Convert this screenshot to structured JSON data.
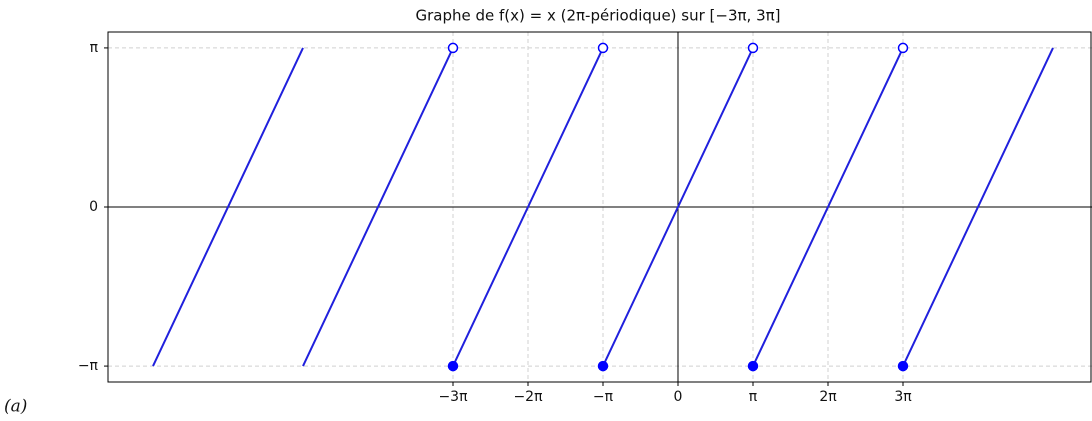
{
  "chart_data": {
    "type": "line",
    "title": "Graphe de f(x) = x (2π-périodique) sur [−3π, 3π]",
    "caption": "(a)",
    "x": [
      -21.99115,
      -15.70796,
      -15.70796,
      -15.70796,
      -9.42478,
      -9.42478,
      -9.42478,
      -3.14159,
      -3.14159,
      -3.14159,
      3.14159,
      3.14159,
      3.14159,
      9.42478,
      9.42478,
      9.42478,
      15.70796
    ],
    "series": [
      {
        "color": "#2020dd",
        "marker": "none",
        "x": [
          -21.99115,
          -15.70796,
          -15.70796,
          -15.70796,
          -9.42478,
          -9.42478,
          -9.42478,
          -3.14159,
          -3.14159,
          -3.14159,
          3.14159,
          3.14159,
          3.14159,
          9.42478,
          9.42478,
          9.42478,
          15.70796
        ],
        "values": [
          -3.14159,
          3.14159,
          null,
          -3.14159,
          3.14159,
          null,
          -3.14159,
          3.14159,
          null,
          -3.14159,
          3.14159,
          null,
          -3.14159,
          3.14159,
          null,
          -3.14159,
          3.14159
        ]
      },
      {
        "color": "#0000ff",
        "marker": "filled",
        "x": [
          -9.42478,
          -3.14159,
          3.14159,
          9.42478
        ],
        "values": [
          -3.14159,
          -3.14159,
          -3.14159,
          -3.14159
        ]
      },
      {
        "color": "#0000ff",
        "marker": "open",
        "x": [
          -9.42478,
          -3.14159,
          3.14159,
          9.42478
        ],
        "values": [
          3.14159,
          3.14159,
          3.14159,
          3.14159
        ]
      }
    ],
    "xlim": [
      -23.876,
      17.342
    ],
    "ylim": [
      -3.456,
      3.456
    ],
    "xticks": [
      {
        "value": -9.42478,
        "label": "−3π"
      },
      {
        "value": -6.28319,
        "label": "−2π"
      },
      {
        "value": -3.14159,
        "label": "−π"
      },
      0,
      {
        "value": 3.14159,
        "label": "π"
      },
      {
        "value": 6.28319,
        "label": "2π"
      },
      {
        "value": 9.42478,
        "label": "3π"
      }
    ],
    "yticks": [
      {
        "value": -3.14159,
        "label": "−π"
      },
      0,
      {
        "value": 3.14159,
        "label": "π"
      }
    ],
    "grid": true
  }
}
